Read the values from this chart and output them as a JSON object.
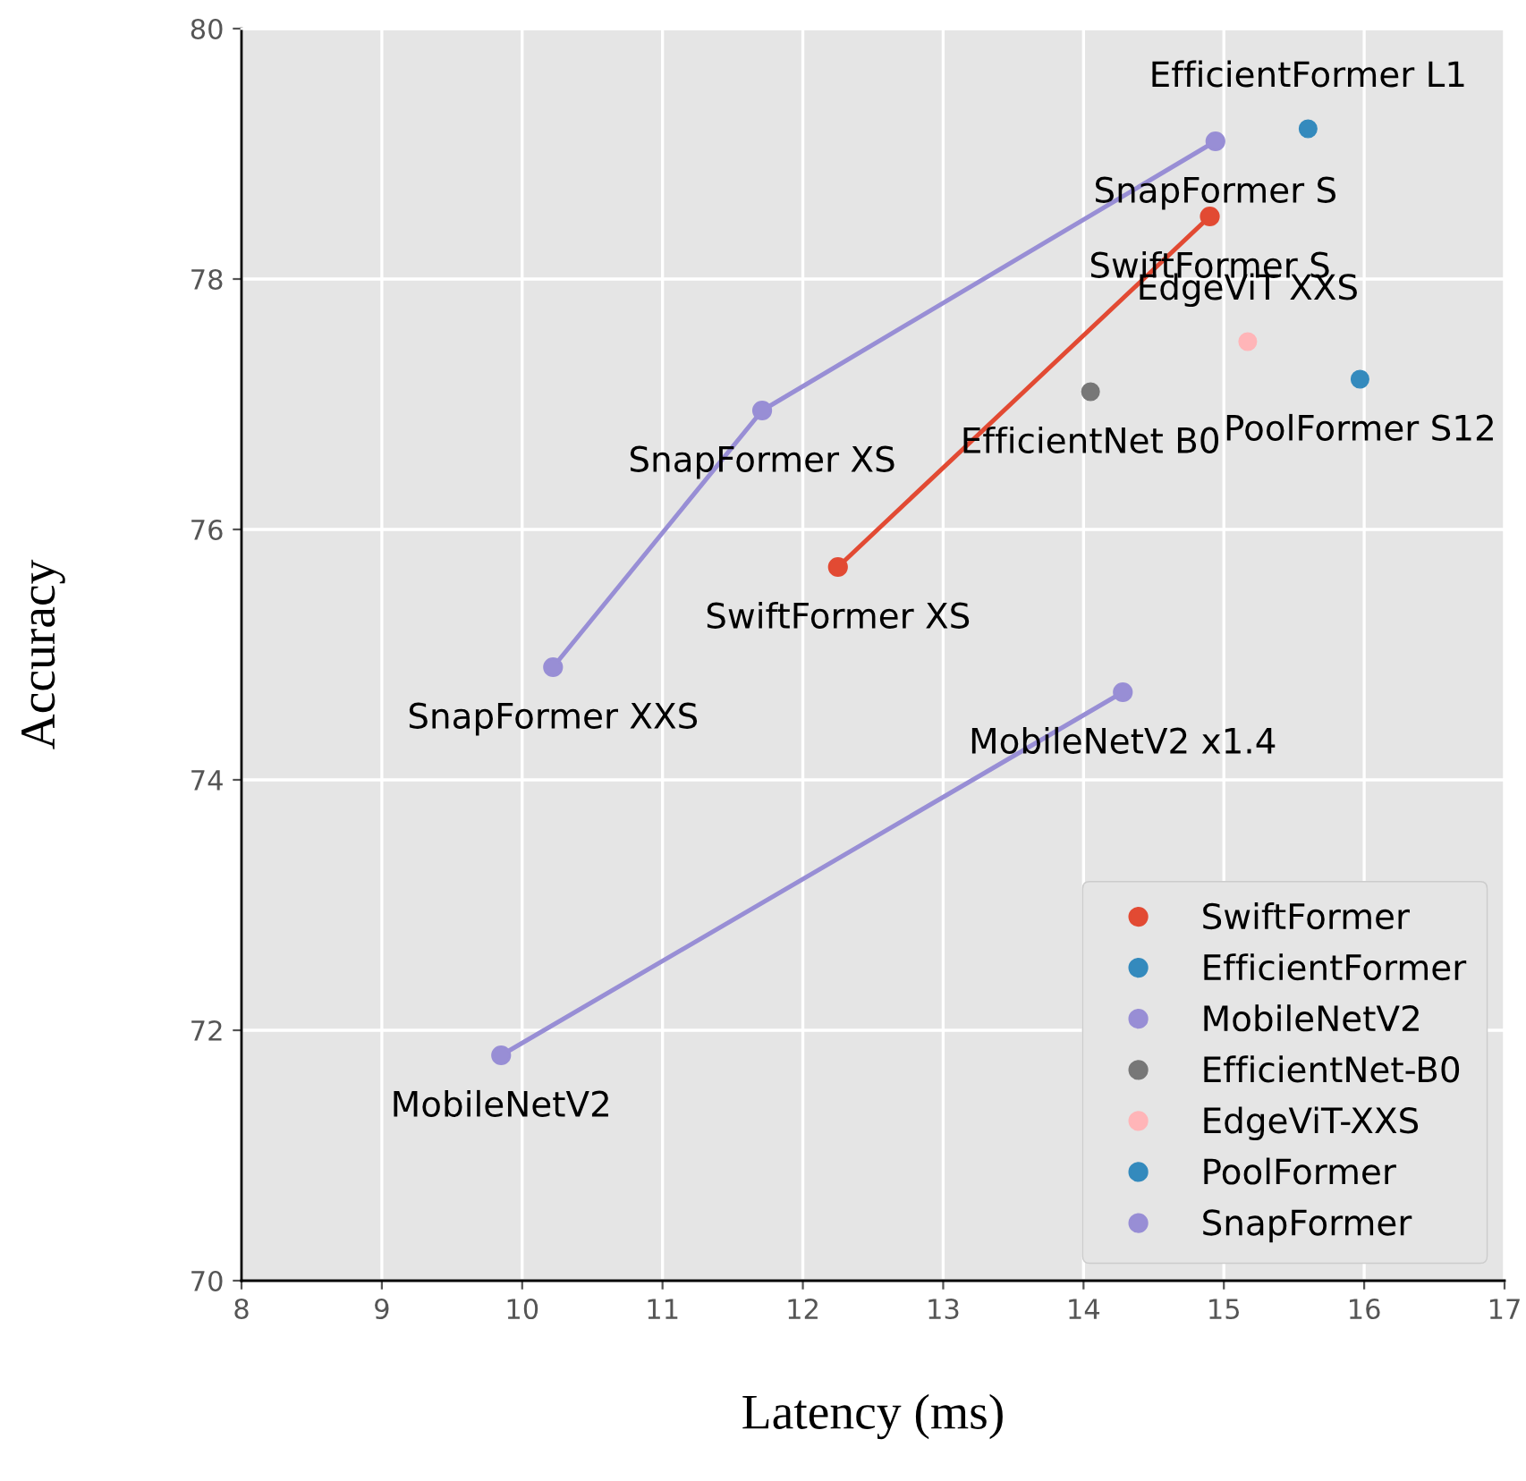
{
  "chart_data": {
    "type": "line",
    "xlabel": "Latency (ms)",
    "ylabel": "Accuracy",
    "xlim": [
      8,
      17
    ],
    "xticks": [
      8,
      9,
      10,
      11,
      12,
      13,
      14,
      15,
      16,
      17
    ],
    "ylim": [
      70,
      80
    ],
    "yticks": [
      70,
      72,
      74,
      76,
      78,
      80
    ],
    "grid": true,
    "legend": "bottom right",
    "marker": "circle",
    "line_style": "solid",
    "series": [
      {
        "name": "SwiftFormer",
        "color": "#e24a33",
        "x": [
          12.25,
          14.9
        ],
        "values": [
          75.7,
          78.5
        ]
      },
      {
        "name": "EfficientFormer",
        "type": "scatter",
        "color": "#348abd",
        "x": [
          15.6
        ],
        "values": [
          79.2
        ]
      },
      {
        "name": "MobileNetV2",
        "color": "#988ed5",
        "x": [
          9.85,
          14.28
        ],
        "values": [
          71.8,
          74.7
        ]
      },
      {
        "name": "EfficientNet-B0",
        "type": "scatter",
        "color": "#777777",
        "x": [
          14.05
        ],
        "values": [
          77.1
        ]
      },
      {
        "name": "EdgeViT-XXS",
        "type": "scatter",
        "color": "#ffb5b8",
        "x": [
          15.17
        ],
        "values": [
          77.5
        ]
      },
      {
        "name": "PoolFormer",
        "type": "scatter",
        "color": "#348abd",
        "x": [
          15.97
        ],
        "values": [
          77.2
        ]
      },
      {
        "name": "SnapFormer",
        "color": "#988ed5",
        "x": [
          10.22,
          11.71,
          14.94
        ],
        "values": [
          74.9,
          76.95,
          79.1
        ]
      }
    ],
    "annotations": [
      {
        "text": "EfficientFormer L1",
        "x": 15.6,
        "y": 79.2
      },
      {
        "text": "SnapFormer S",
        "x": 14.94,
        "y": 79.1
      },
      {
        "text": "SwiftFormer S",
        "x": 14.9,
        "y": 78.5
      },
      {
        "text": "EdgeViT XXS",
        "x": 15.17,
        "y": 77.5
      },
      {
        "text": "EfficientNet B0",
        "x": 14.05,
        "y": 77.1
      },
      {
        "text": "PoolFormer S12",
        "x": 15.97,
        "y": 77.2
      },
      {
        "text": "SnapFormer XS",
        "x": 11.71,
        "y": 76.95
      },
      {
        "text": "SwiftFormer XS",
        "x": 12.25,
        "y": 75.7
      },
      {
        "text": "SnapFormer XXS",
        "x": 10.22,
        "y": 74.9
      },
      {
        "text": "MobileNetV2 x1.4",
        "x": 14.28,
        "y": 74.7
      },
      {
        "text": "MobileNetV2",
        "x": 9.85,
        "y": 71.8
      }
    ]
  }
}
